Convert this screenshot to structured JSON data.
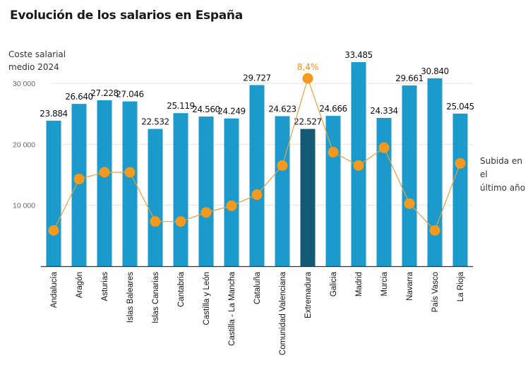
{
  "chart_data": {
    "type": "bar",
    "title": "Evolución de los salarios en España",
    "ylabel": "Coste salarial medio 2024",
    "xlabel": "",
    "ylim": [
      0,
      35000
    ],
    "yticks": [
      {
        "value": 10000,
        "label": "10 000"
      },
      {
        "value": 20000,
        "label": "20 000"
      },
      {
        "value": 30000,
        "label": "30 000"
      }
    ],
    "grid": true,
    "categories": [
      "Andalucía",
      "Aragón",
      "Asturias",
      "Islas Baleares",
      "Islas Canarias",
      "Cantabria",
      "Castilla y León",
      "Castilla - La Mancha",
      "Cataluña",
      "Comunidad Valenciana",
      "Extremadura",
      "Galicia",
      "Madrid",
      "Murcia",
      "Navarra",
      "País Vasco",
      "La Rioja"
    ],
    "series": [
      {
        "name": "Coste salarial medio 2024",
        "type": "bar",
        "values": [
          23884,
          26640,
          27228,
          27046,
          22532,
          25119,
          24560,
          24249,
          29727,
          24623,
          22527,
          24666,
          33485,
          24334,
          29661,
          30840,
          25045
        ],
        "labels": [
          "23.884",
          "26.640",
          "27.228",
          "27.046",
          "22.532",
          "25.119",
          "24.560",
          "24.249",
          "29.727",
          "24.623",
          "22.527",
          "24.666",
          "33.485",
          "24.334",
          "29.661",
          "30.840",
          "25.045"
        ],
        "color": "#1b9acb",
        "highlight_index": 10,
        "highlight_color": "#135a75"
      },
      {
        "name": "Subida en el último año",
        "type": "line",
        "unit": "%",
        "values": [
          1.6,
          3.9,
          4.2,
          4.2,
          2.0,
          2.0,
          2.4,
          2.7,
          3.2,
          4.5,
          8.4,
          5.1,
          4.5,
          5.3,
          2.8,
          1.6,
          4.6
        ],
        "annotated_index": 10,
        "annotation": "8,4%",
        "color": "#f39a1e"
      }
    ],
    "legend": {
      "line_label_line1": "Subida en el",
      "line_label_line2": "último año",
      "placement": "right"
    }
  }
}
